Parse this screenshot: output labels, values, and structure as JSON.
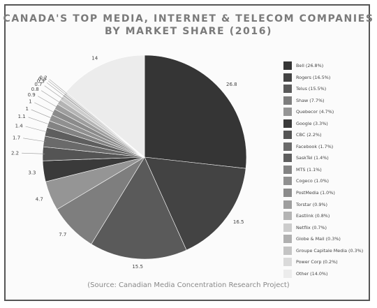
{
  "chart_data": {
    "type": "pie",
    "title_lines": [
      "CANADA'S TOP MEDIA, INTERNET & TELECOM COMPANIES",
      "BY MARKET SHARE (2016)"
    ],
    "source": "(Source: Canadian Media Concentration Research Project)",
    "legend_position": "right",
    "slices": [
      {
        "value": 26.8,
        "value_label": "26.8",
        "legend": "Bell (26.8%)",
        "color": "#353535"
      },
      {
        "value": 16.5,
        "value_label": "16.5",
        "legend": "Rogers (16.5%)",
        "color": "#434343"
      },
      {
        "value": 15.5,
        "value_label": "15.5",
        "legend": "Telus (15.5%)",
        "color": "#5a5a5a"
      },
      {
        "value": 7.7,
        "value_label": "7.7",
        "legend": "Shaw (7.7%)",
        "color": "#7e7e7e"
      },
      {
        "value": 4.7,
        "value_label": "4.7",
        "legend": "Quebecor (4.7%)",
        "color": "#959595"
      },
      {
        "value": 3.3,
        "value_label": "3.3",
        "legend": "Google (3.3%)",
        "color": "#3a3a3a"
      },
      {
        "value": 2.2,
        "value_label": "2.2",
        "legend": "CBC (2.2%)",
        "color": "#545454"
      },
      {
        "value": 1.7,
        "value_label": "1.7",
        "legend": "Facebook (1.7%)",
        "color": "#6a6a6a"
      },
      {
        "value": 1.4,
        "value_label": "1.4",
        "legend": "SaskTel (1.4%)",
        "color": "#5e5e5e"
      },
      {
        "value": 1.1,
        "value_label": "1.1",
        "legend": "MTS (1.1%)",
        "color": "#838383"
      },
      {
        "value": 1.0,
        "value_label": "1",
        "legend": "Cogeco (1.0%)",
        "color": "#909090"
      },
      {
        "value": 1.0,
        "value_label": "1",
        "legend": "PostMedia (1.0%)",
        "color": "#8b8b8b"
      },
      {
        "value": 0.9,
        "value_label": "0.9",
        "legend": "Torstar (0.9%)",
        "color": "#9e9e9e"
      },
      {
        "value": 0.8,
        "value_label": "0.8",
        "legend": "Eastlink (0.8%)",
        "color": "#b4b4b4"
      },
      {
        "value": 0.7,
        "value_label": "0.7",
        "legend": "Netflix (0.7%)",
        "color": "#cccccc"
      },
      {
        "value": 0.3,
        "value_label": "0.3",
        "legend": "Globe & Mail (0.3%)",
        "color": "#b0b0b0"
      },
      {
        "value": 0.3,
        "value_label": "0.3",
        "legend": "Groupe Capitale Media (0.3%)",
        "color": "#c4c4c4"
      },
      {
        "value": 0.2,
        "value_label": "0.2",
        "legend": "Power Corp (0.2%)",
        "color": "#dadada"
      },
      {
        "value": 14.0,
        "value_label": "14",
        "legend": "Other (14.0%)",
        "color": "#ececec"
      }
    ]
  }
}
